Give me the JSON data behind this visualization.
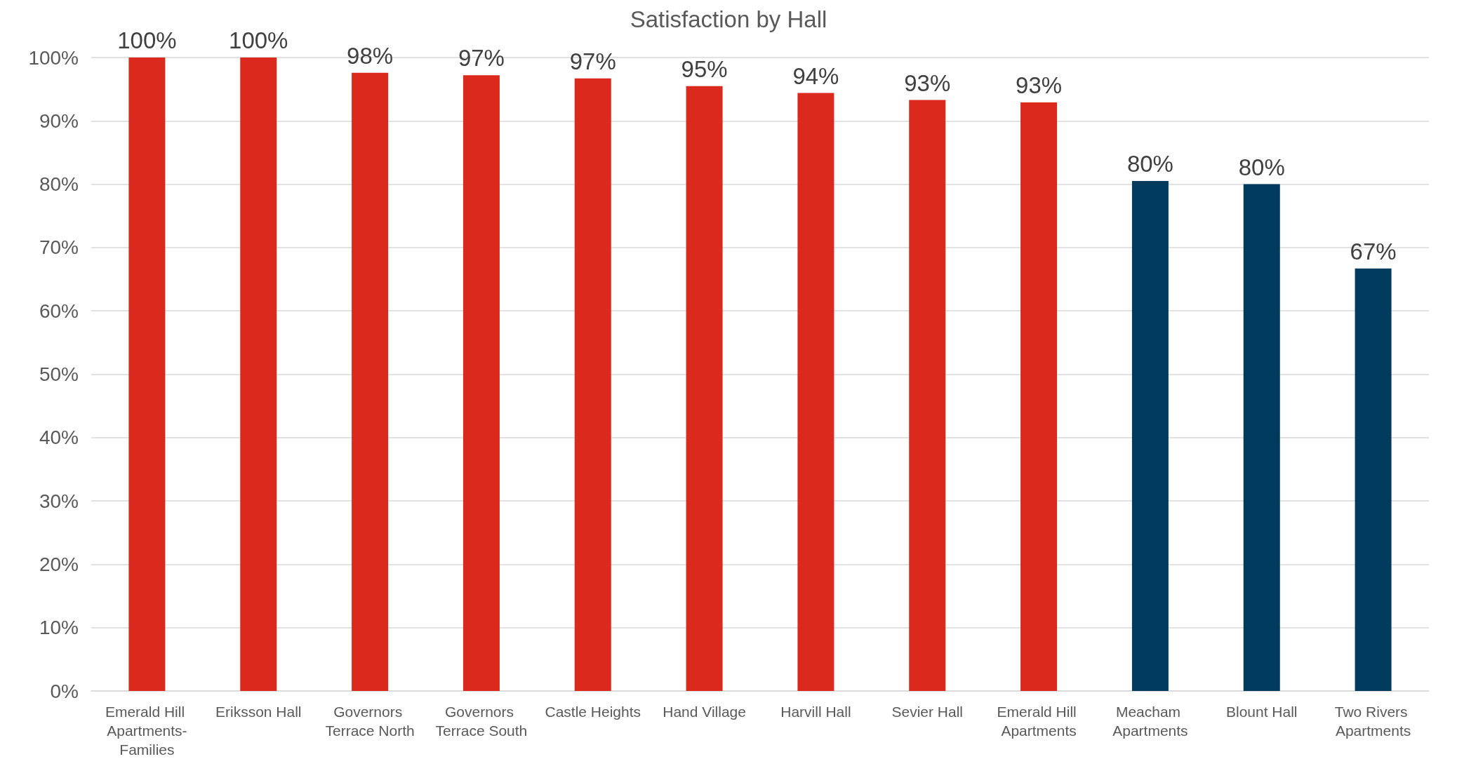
{
  "chart_data": {
    "type": "bar",
    "title": "Satisfaction by Hall",
    "categories": [
      "Emerald Hill Apartments-Families",
      "Eriksson Hall",
      "Governors Terrace North",
      "Governors Terrace South",
      "Castle Heights",
      "Hand Village",
      "Harvill Hall",
      "Sevier Hall",
      "Emerald Hill Apartments",
      "Meacham Apartments",
      "Blount Hall",
      "Two Rivers Apartments"
    ],
    "values": [
      100,
      100,
      97.6,
      97.2,
      96.7,
      95.5,
      94.4,
      93.3,
      92.9,
      80.5,
      80,
      66.7
    ],
    "value_labels": [
      "100%",
      "100%",
      "98%",
      "97%",
      "97%",
      "95%",
      "94%",
      "93%",
      "93%",
      "80%",
      "80%",
      "67%"
    ],
    "colors": [
      "#dc291e",
      "#dc291e",
      "#dc291e",
      "#dc291e",
      "#dc291e",
      "#dc291e",
      "#dc291e",
      "#dc291e",
      "#dc291e",
      "#003a5d",
      "#003a5d",
      "#003a5d"
    ],
    "ylim": [
      0,
      100
    ],
    "yticks": [
      {
        "value": 0,
        "label": "0%"
      },
      {
        "value": 10,
        "label": "10%"
      },
      {
        "value": 20,
        "label": "20%"
      },
      {
        "value": 30,
        "label": "30%"
      },
      {
        "value": 40,
        "label": "40%"
      },
      {
        "value": 50,
        "label": "50%"
      },
      {
        "value": 60,
        "label": "60%"
      },
      {
        "value": 70,
        "label": "70%"
      },
      {
        "value": 80,
        "label": "80%"
      },
      {
        "value": 90,
        "label": "90%"
      },
      {
        "value": 100,
        "label": "100%"
      }
    ],
    "grid": "y"
  }
}
